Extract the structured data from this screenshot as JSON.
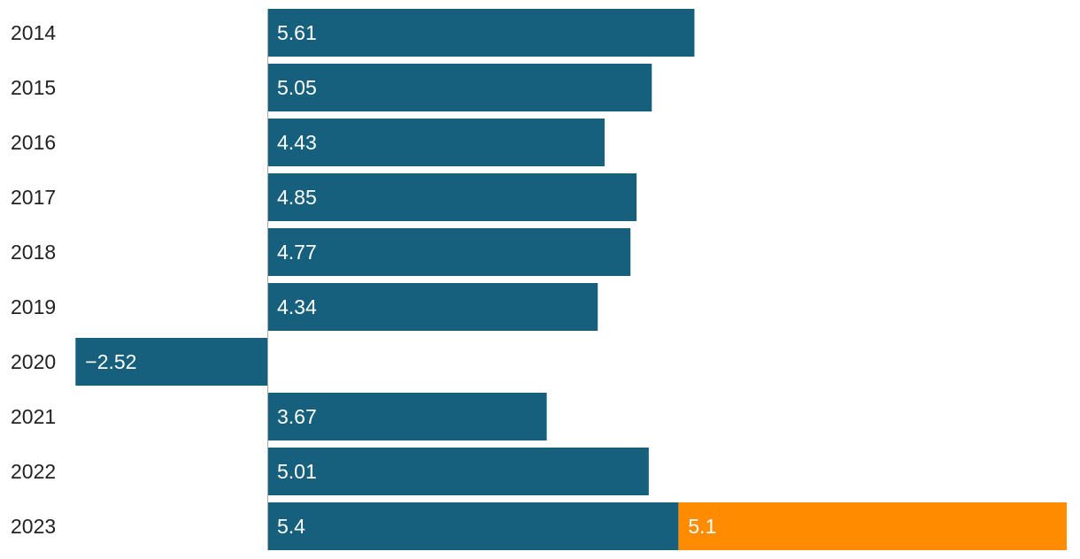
{
  "chart_data": {
    "type": "bar",
    "orientation": "horizontal",
    "stacked": true,
    "categories": [
      "2014",
      "2015",
      "2016",
      "2017",
      "2018",
      "2019",
      "2020",
      "2021",
      "2022",
      "2023"
    ],
    "series": [
      {
        "name": "series-1",
        "color": "#17607d",
        "values": [
          5.61,
          5.05,
          4.43,
          4.85,
          4.77,
          4.34,
          -2.52,
          3.67,
          5.01,
          5.4
        ],
        "labels": [
          "5.61",
          "5.05",
          "4.43",
          "4.85",
          "4.77",
          "4.34",
          "−2.52",
          "3.67",
          "5.01",
          "5.4"
        ]
      },
      {
        "name": "series-2",
        "color": "#ff8c00",
        "values": [
          null,
          null,
          null,
          null,
          null,
          null,
          null,
          null,
          null,
          5.1
        ],
        "labels": [
          null,
          null,
          null,
          null,
          null,
          null,
          null,
          null,
          null,
          "5.1"
        ]
      }
    ],
    "xlim": [
      -2.52,
      10.5
    ],
    "title": "",
    "xlabel": "",
    "ylabel": "",
    "grid": false,
    "legend": "none"
  }
}
